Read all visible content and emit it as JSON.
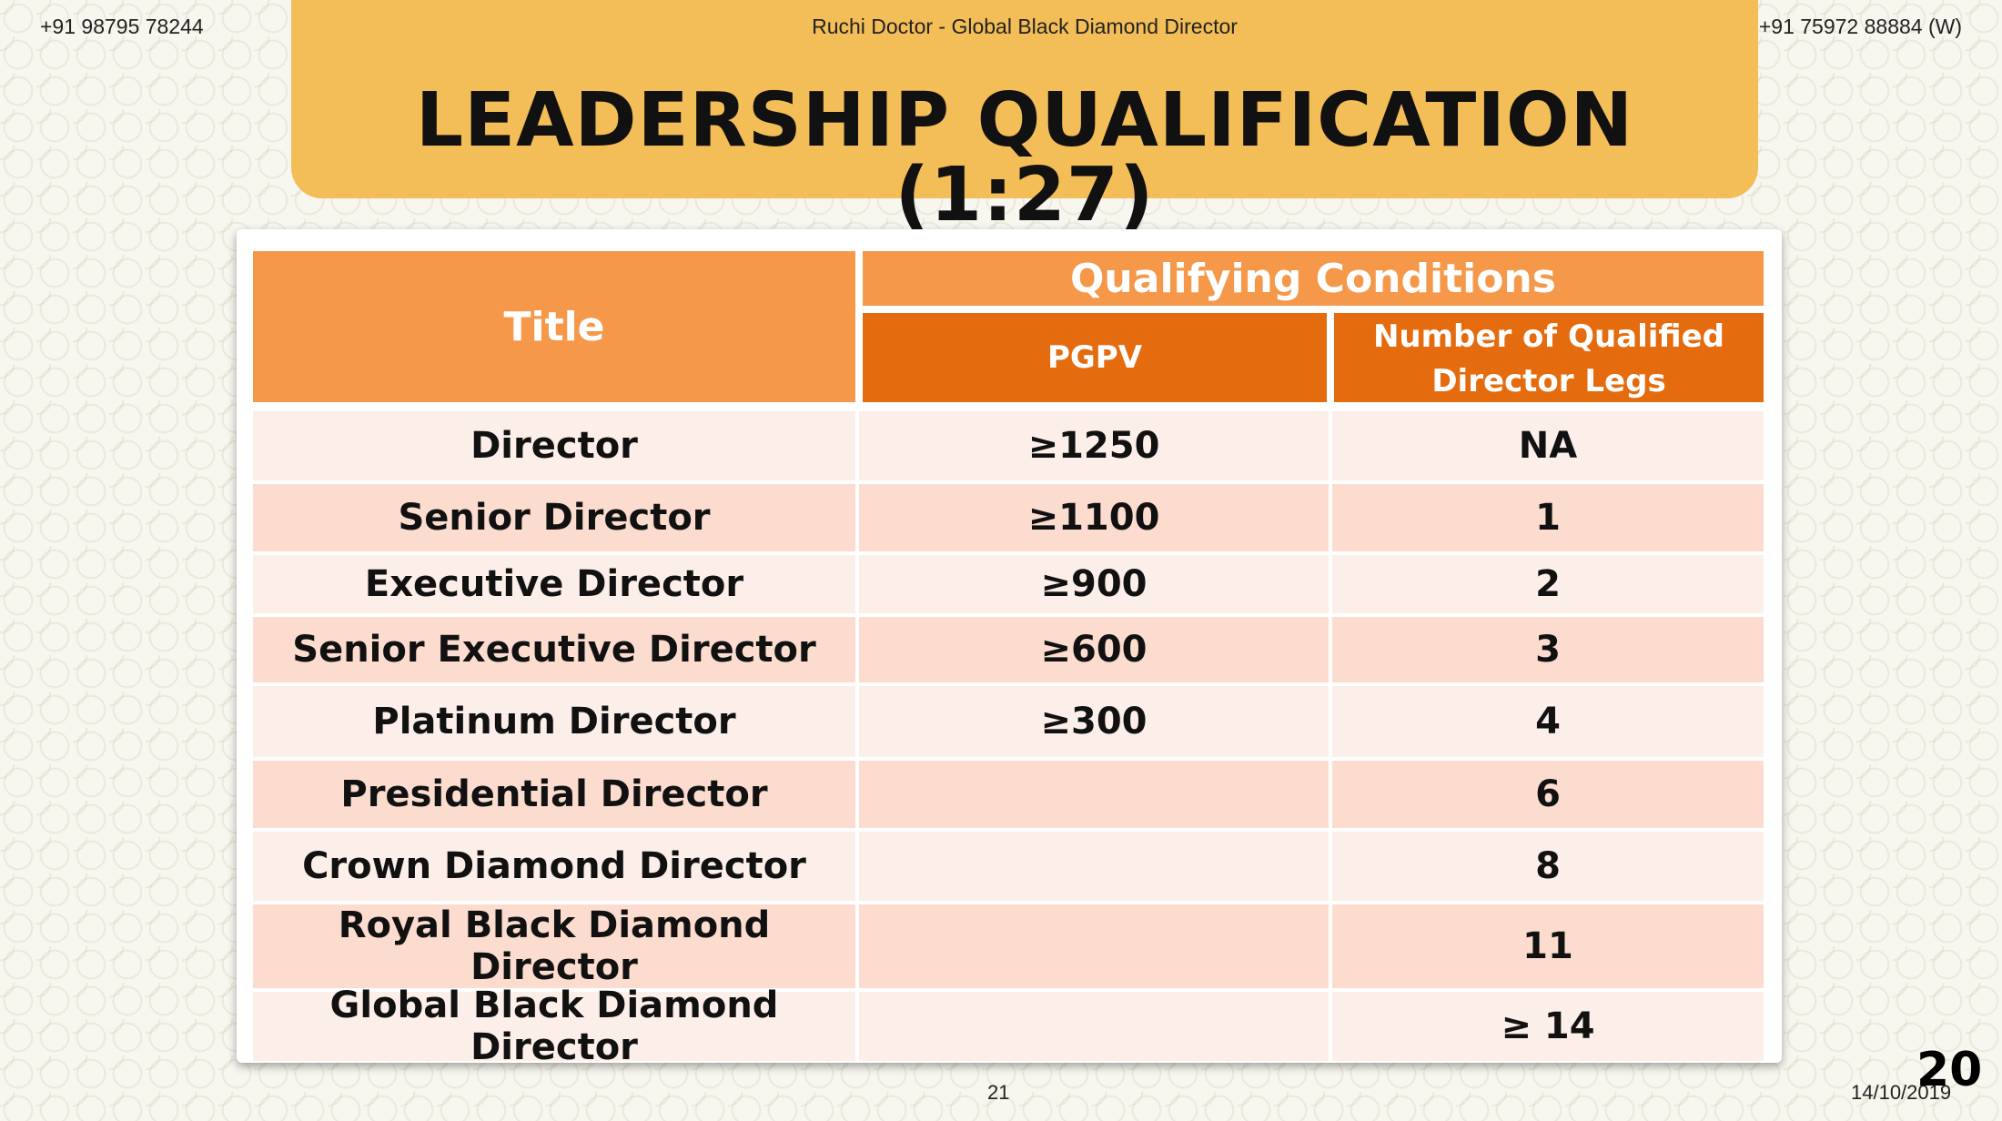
{
  "header": {
    "phone_left": "+91 98795 78244",
    "author": "Ruchi Doctor - Global Black Diamond Director",
    "phone_right": "+91 75972 88884 (W)",
    "title": "LEADERSHIP QUALIFICATION (1:27)"
  },
  "table": {
    "col_title": "Title",
    "group_header": "Qualifying Conditions",
    "col_pgpv": "PGPV",
    "col_legs": "Number of Qualified Director Legs",
    "rows": [
      {
        "title": "Director",
        "pgpv": "≥1250",
        "legs": "NA"
      },
      {
        "title": "Senior Director",
        "pgpv": "≥1100",
        "legs": "1"
      },
      {
        "title": "Executive Director",
        "pgpv": "≥900",
        "legs": "2"
      },
      {
        "title": "Senior Executive Director",
        "pgpv": "≥600",
        "legs": "3"
      },
      {
        "title": "Platinum Director",
        "pgpv": "≥300",
        "legs": "4"
      },
      {
        "title": "Presidential Director",
        "pgpv": "",
        "legs": "6"
      },
      {
        "title": "Crown Diamond Director",
        "pgpv": "",
        "legs": "8"
      },
      {
        "title": "Royal Black Diamond Director",
        "pgpv": "",
        "legs": "11"
      },
      {
        "title": "Global Black Diamond Director",
        "pgpv": "",
        "legs": "≥ 14"
      }
    ]
  },
  "footer": {
    "page_number": "21",
    "date": "14/10/2019",
    "slide_number": "20"
  }
}
